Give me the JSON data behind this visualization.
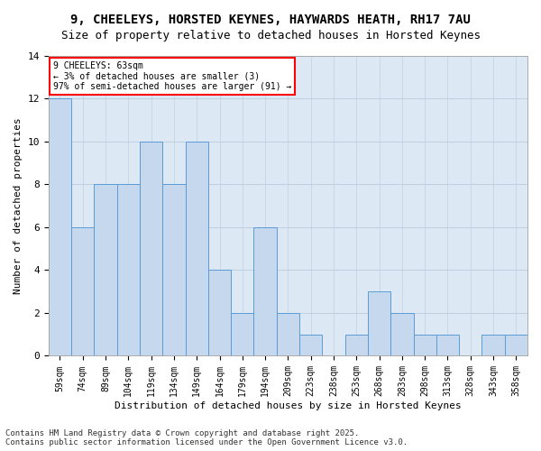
{
  "title_line1": "9, CHEELEYS, HORSTED KEYNES, HAYWARDS HEATH, RH17 7AU",
  "title_line2": "Size of property relative to detached houses in Horsted Keynes",
  "xlabel": "Distribution of detached houses by size in Horsted Keynes",
  "ylabel": "Number of detached properties",
  "footer": "Contains HM Land Registry data © Crown copyright and database right 2025.\nContains public sector information licensed under the Open Government Licence v3.0.",
  "annotation_title": "9 CHEELEYS: 63sqm",
  "annotation_line2": "← 3% of detached houses are smaller (3)",
  "annotation_line3": "97% of semi-detached houses are larger (91) →",
  "categories": [
    "59sqm",
    "74sqm",
    "89sqm",
    "104sqm",
    "119sqm",
    "134sqm",
    "149sqm",
    "164sqm",
    "179sqm",
    "194sqm",
    "209sqm",
    "223sqm",
    "238sqm",
    "253sqm",
    "268sqm",
    "283sqm",
    "298sqm",
    "313sqm",
    "328sqm",
    "343sqm",
    "358sqm"
  ],
  "values": [
    12,
    6,
    8,
    8,
    10,
    8,
    10,
    4,
    2,
    6,
    2,
    1,
    0,
    1,
    3,
    2,
    1,
    1,
    0,
    1,
    1
  ],
  "bar_color": "#c5d8ed",
  "bar_edge_color": "#5b9bd5",
  "annotation_box_color": "white",
  "annotation_box_edge_color": "red",
  "ylim": [
    0,
    14
  ],
  "yticks": [
    0,
    2,
    4,
    6,
    8,
    10,
    12,
    14
  ],
  "grid_color": "#c0cfe0",
  "bg_color": "#dce9f5",
  "title_fontsize": 10,
  "subtitle_fontsize": 9,
  "axis_label_fontsize": 8,
  "tick_fontsize": 7,
  "footer_fontsize": 6.5
}
